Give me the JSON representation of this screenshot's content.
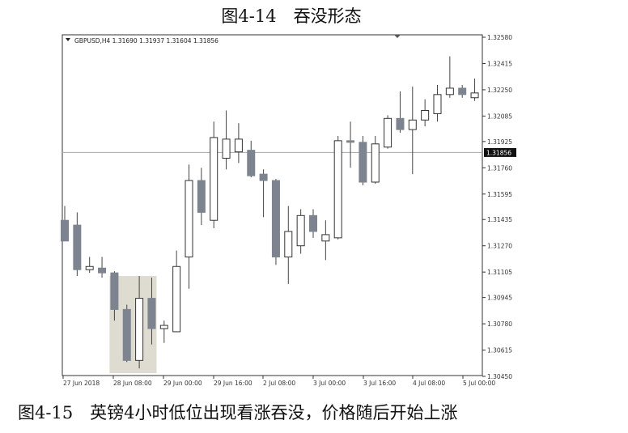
{
  "figure_title": "图4-14　吞没形态",
  "caption": "图4-15　英镑4小时低位出现看涨吞没，价格随后开始上涨",
  "colors": {
    "up": "#ffffff",
    "down": "#7d848f",
    "wick": "#444444",
    "frame": "#333333",
    "price_line": "#a6a6a6",
    "highlight": "#dedbd0"
  },
  "chart_data": {
    "type": "candlestick",
    "symbol": "GBPUSD,H4",
    "header": "GBPUSD,H4  1.31690 1.31937 1.31604 1.31856",
    "ohlc_header": {
      "open": 1.3169,
      "high": 1.31937,
      "low": 1.31604,
      "close": 1.31856
    },
    "y_ticks": [
      "1.32580",
      "1.32415",
      "1.32250",
      "1.32085",
      "1.31925",
      "1.31760",
      "1.31595",
      "1.31435",
      "1.31270",
      "1.31105",
      "1.30945",
      "1.30780",
      "1.30615",
      "1.30450"
    ],
    "ylim": [
      1.3045,
      1.3258
    ],
    "current_price_label": "1.31856",
    "current_price": 1.31856,
    "x_labels": [
      "27 Jun 2018",
      "28 Jun 08:00",
      "29 Jun 00:00",
      "29 Jun 16:00",
      "2 Jul 08:00",
      "3 Jul 00:00",
      "3 Jul 16:00",
      "4 Jul 08:00",
      "5 Jul 00:00"
    ],
    "highlight_range": [
      4,
      7
    ],
    "candles": [
      {
        "o": 1.3143,
        "h": 1.3152,
        "l": 1.313,
        "c": 1.313
      },
      {
        "o": 1.314,
        "h": 1.3148,
        "l": 1.3108,
        "c": 1.3112
      },
      {
        "o": 1.3112,
        "h": 1.312,
        "l": 1.311,
        "c": 1.3114
      },
      {
        "o": 1.3113,
        "h": 1.312,
        "l": 1.3107,
        "c": 1.311
      },
      {
        "o": 1.311,
        "h": 1.3111,
        "l": 1.308,
        "c": 1.3087
      },
      {
        "o": 1.3087,
        "h": 1.309,
        "l": 1.3054,
        "c": 1.3055
      },
      {
        "o": 1.3055,
        "h": 1.3108,
        "l": 1.305,
        "c": 1.3094
      },
      {
        "o": 1.3094,
        "h": 1.3107,
        "l": 1.3065,
        "c": 1.3075
      },
      {
        "o": 1.3075,
        "h": 1.308,
        "l": 1.3066,
        "c": 1.3077
      },
      {
        "o": 1.3073,
        "h": 1.3124,
        "l": 1.3073,
        "c": 1.3114
      },
      {
        "o": 1.312,
        "h": 1.3178,
        "l": 1.31,
        "c": 1.3168
      },
      {
        "o": 1.3168,
        "h": 1.3176,
        "l": 1.314,
        "c": 1.3148
      },
      {
        "o": 1.3143,
        "h": 1.3205,
        "l": 1.3138,
        "c": 1.3195
      },
      {
        "o": 1.3182,
        "h": 1.3212,
        "l": 1.3175,
        "c": 1.3194
      },
      {
        "o": 1.3186,
        "h": 1.3204,
        "l": 1.3179,
        "c": 1.3194
      },
      {
        "o": 1.3187,
        "h": 1.3193,
        "l": 1.317,
        "c": 1.3171
      },
      {
        "o": 1.3172,
        "h": 1.3175,
        "l": 1.3145,
        "c": 1.3168
      },
      {
        "o": 1.3168,
        "h": 1.3169,
        "l": 1.3115,
        "c": 1.312
      },
      {
        "o": 1.312,
        "h": 1.3152,
        "l": 1.3103,
        "c": 1.3136
      },
      {
        "o": 1.3127,
        "h": 1.315,
        "l": 1.3122,
        "c": 1.3146
      },
      {
        "o": 1.3146,
        "h": 1.315,
        "l": 1.3132,
        "c": 1.3136
      },
      {
        "o": 1.313,
        "h": 1.3143,
        "l": 1.3118,
        "c": 1.3134
      },
      {
        "o": 1.3132,
        "h": 1.3196,
        "l": 1.3131,
        "c": 1.3193
      },
      {
        "o": 1.3193,
        "h": 1.3205,
        "l": 1.3176,
        "c": 1.3192
      },
      {
        "o": 1.3192,
        "h": 1.3196,
        "l": 1.3165,
        "c": 1.3167
      },
      {
        "o": 1.3167,
        "h": 1.3196,
        "l": 1.3166,
        "c": 1.3191
      },
      {
        "o": 1.3189,
        "h": 1.3209,
        "l": 1.3188,
        "c": 1.3207
      },
      {
        "o": 1.3207,
        "h": 1.3224,
        "l": 1.3198,
        "c": 1.32
      },
      {
        "o": 1.32,
        "h": 1.3227,
        "l": 1.3172,
        "c": 1.3206
      },
      {
        "o": 1.3206,
        "h": 1.3219,
        "l": 1.3202,
        "c": 1.3212
      },
      {
        "o": 1.321,
        "h": 1.3228,
        "l": 1.3205,
        "c": 1.3222
      },
      {
        "o": 1.3222,
        "h": 1.3246,
        "l": 1.322,
        "c": 1.3226
      },
      {
        "o": 1.3226,
        "h": 1.3228,
        "l": 1.322,
        "c": 1.3222
      },
      {
        "o": 1.322,
        "h": 1.3232,
        "l": 1.3218,
        "c": 1.3223
      }
    ]
  }
}
